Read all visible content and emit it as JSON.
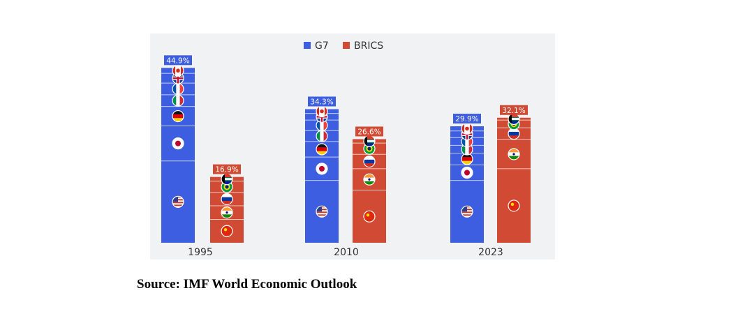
{
  "chart_data": {
    "type": "bar",
    "stacked": true,
    "title": "",
    "xlabel": "",
    "ylabel": "",
    "ylim": [
      0,
      48
    ],
    "grid": false,
    "legend_position": "top-center",
    "categories": [
      "1995",
      "2010",
      "2023"
    ],
    "series": [
      {
        "name": "G7",
        "color": "#3d5ee0",
        "totals": [
          44.9,
          34.3,
          29.9
        ],
        "total_labels": [
          "44.9%",
          "34.3%",
          "29.9%"
        ],
        "segments": [
          {
            "country": "United States",
            "flag": "us-flag",
            "values": [
              21.0,
              16.0,
              16.0
            ]
          },
          {
            "country": "Japan",
            "flag": "japan-flag",
            "values": [
              9.0,
              6.0,
              4.0
            ]
          },
          {
            "country": "Germany",
            "flag": "germany-flag",
            "values": [
              5.0,
              4.0,
              3.0
            ]
          },
          {
            "country": "Italy",
            "flag": "italy-flag",
            "values": [
              3.0,
              2.8,
              2.0
            ]
          },
          {
            "country": "France",
            "flag": "france-flag",
            "values": [
              3.0,
              2.7,
              2.0
            ]
          },
          {
            "country": "United Kingdom",
            "flag": "uk-flag",
            "values": [
              2.5,
              1.7,
              1.7
            ]
          },
          {
            "country": "Canada",
            "flag": "canada-flag",
            "values": [
              1.4,
              1.1,
              1.2
            ]
          }
        ]
      },
      {
        "name": "BRICS",
        "color": "#d14b34",
        "totals": [
          16.9,
          26.6,
          32.1
        ],
        "total_labels": [
          "16.9%",
          "26.6%",
          "32.1%"
        ],
        "segments": [
          {
            "country": "China",
            "flag": "china-flag",
            "values": [
              6.0,
              13.5,
              19.0
            ]
          },
          {
            "country": "India",
            "flag": "india-flag",
            "values": [
              3.5,
              5.5,
              7.5
            ]
          },
          {
            "country": "Russia",
            "flag": "russia-flag",
            "values": [
              3.4,
              3.7,
              3.0
            ]
          },
          {
            "country": "Brazil",
            "flag": "brazil-flag",
            "values": [
              2.9,
              2.9,
              2.0
            ]
          },
          {
            "country": "South Africa",
            "flag": "south-africa-flag",
            "values": [
              1.1,
              1.0,
              0.6
            ]
          }
        ]
      }
    ]
  },
  "source": "Source: IMF World Economic Outlook"
}
